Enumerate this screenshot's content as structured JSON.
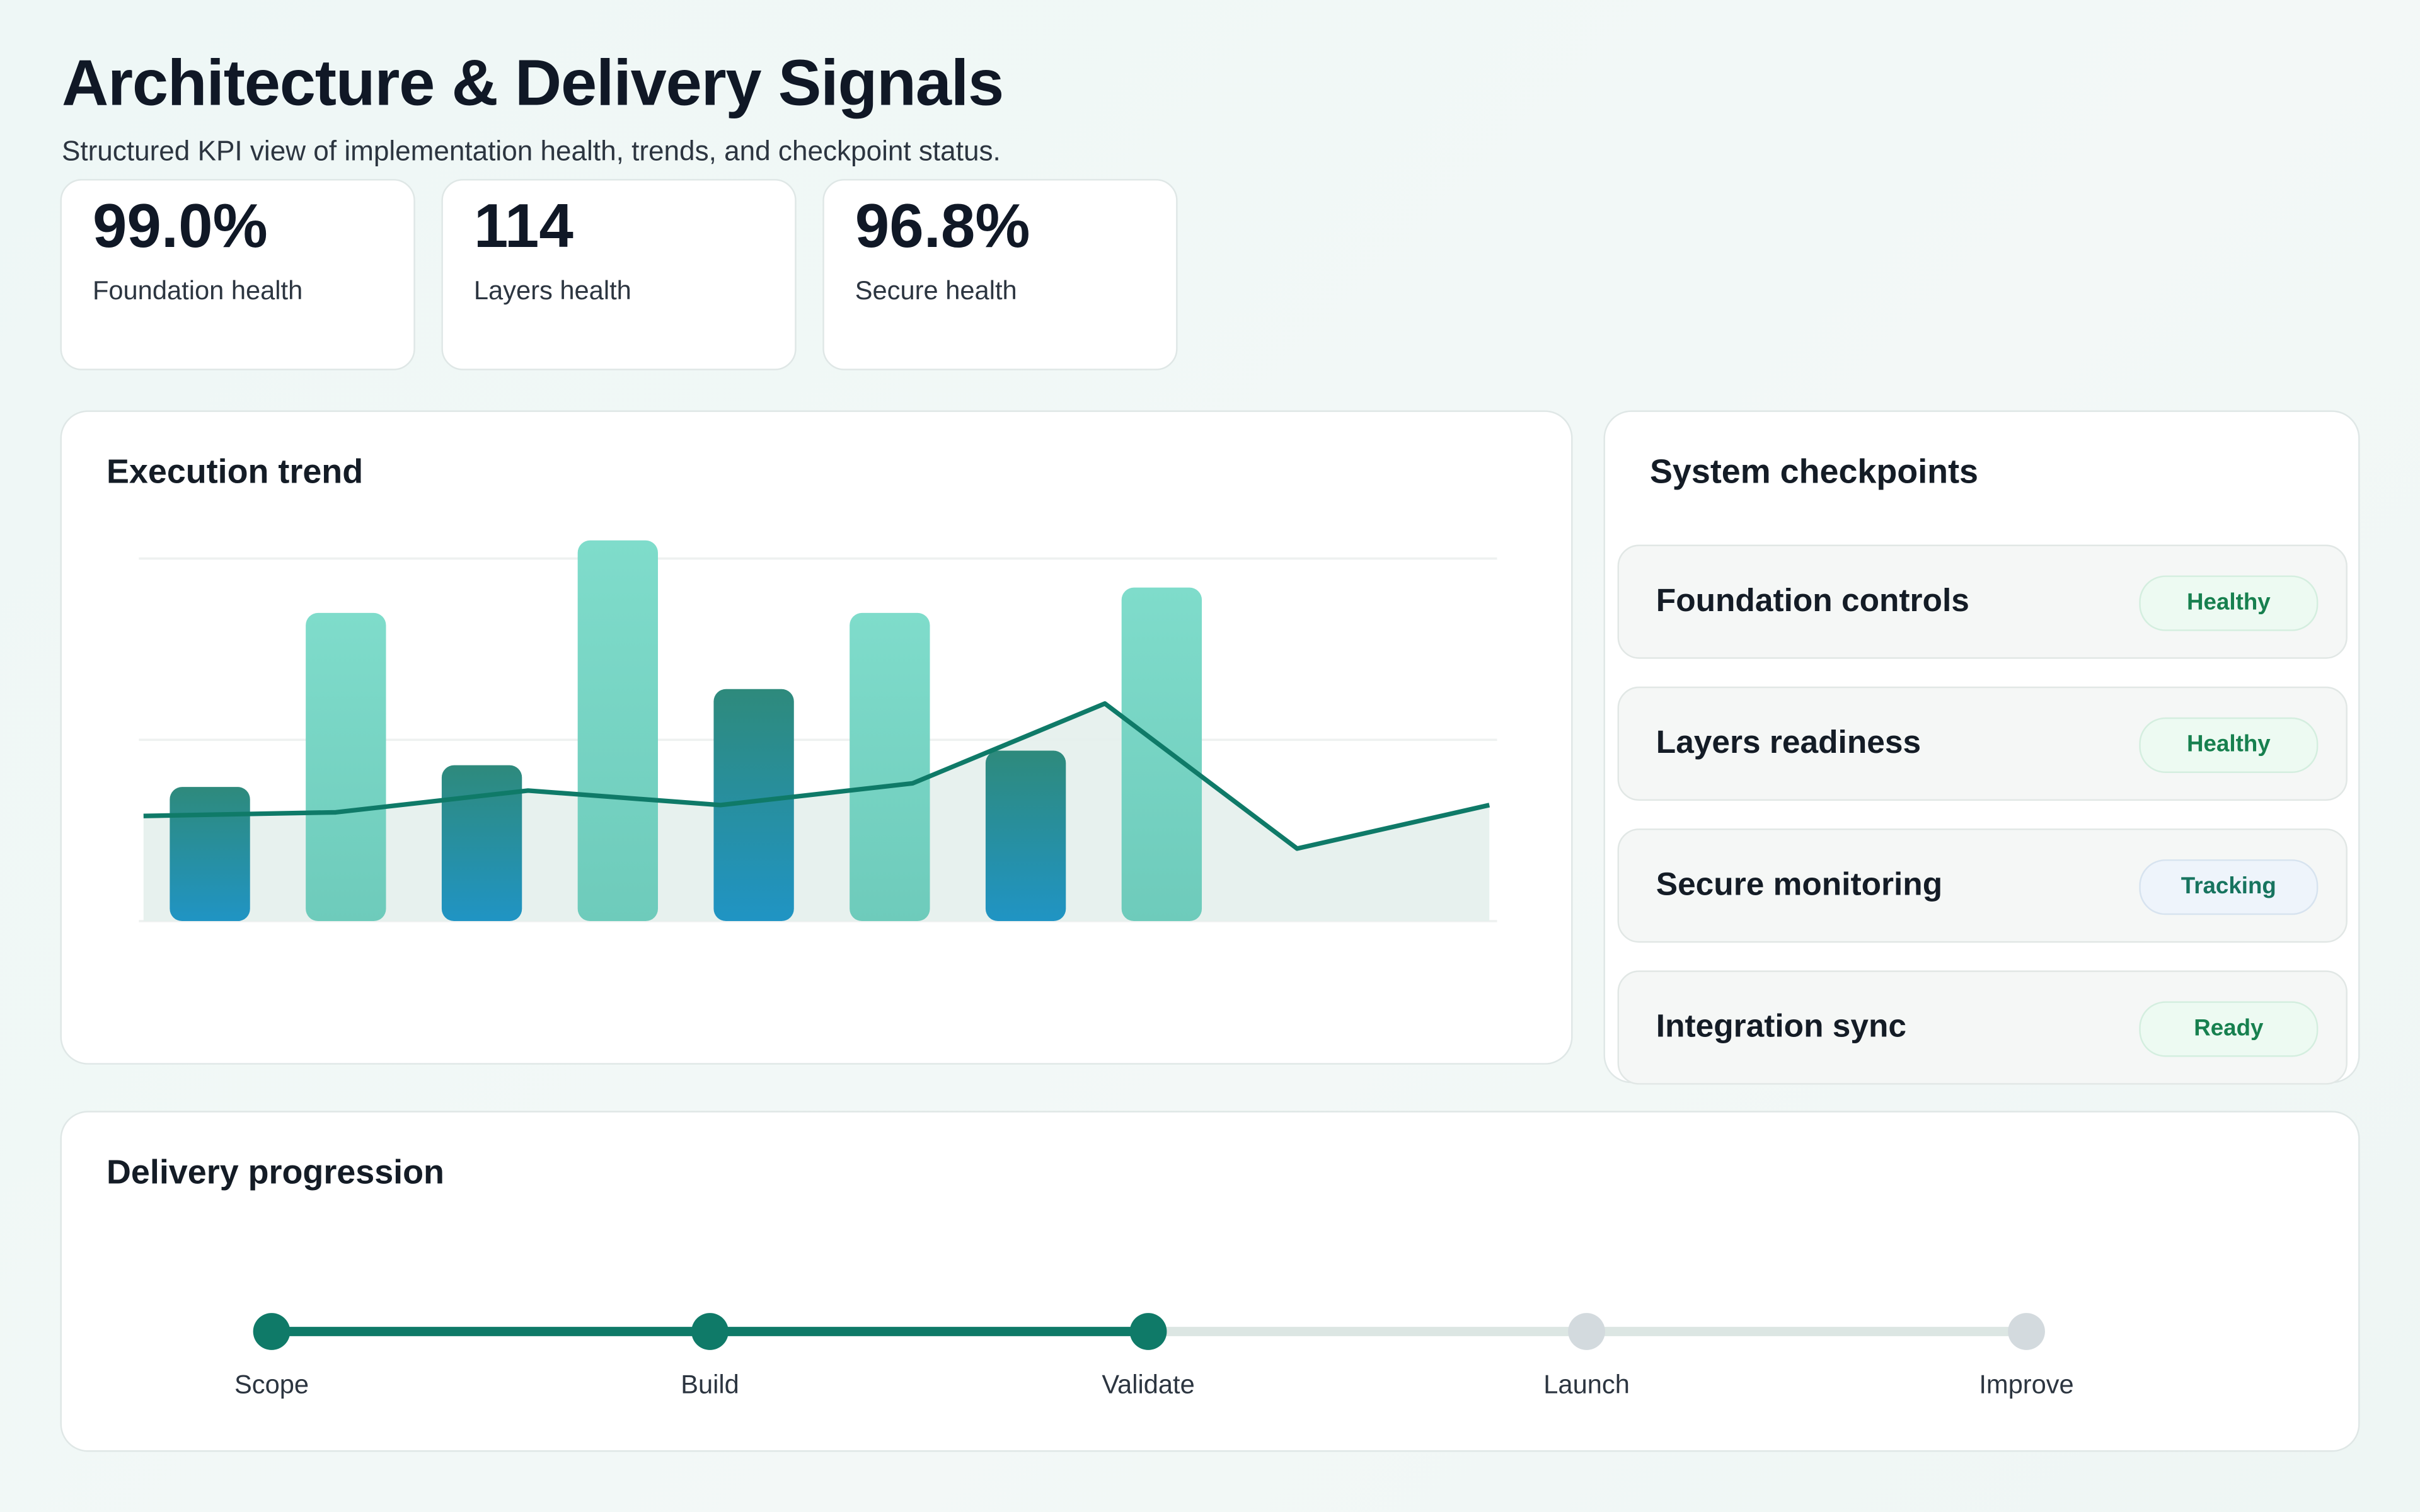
{
  "header": {
    "title": "Architecture & Delivery Signals",
    "subtitle": "Structured KPI view of implementation health, trends, and checkpoint status."
  },
  "kpis": [
    {
      "value": "99.0%",
      "label": "Foundation health"
    },
    {
      "value": "114",
      "label": "Layers health"
    },
    {
      "value": "96.8%",
      "label": "Secure health"
    }
  ],
  "trend": {
    "title": "Execution trend"
  },
  "chart_data": {
    "type": "bar",
    "title": "Execution trend",
    "ylim": [
      0,
      110
    ],
    "grid": true,
    "bars": [
      37,
      85,
      43,
      105,
      64,
      85,
      47,
      92
    ],
    "bar_colors": [
      "dark",
      "light",
      "dark",
      "light",
      "dark",
      "light",
      "dark",
      "light"
    ],
    "line": [
      29,
      30,
      36,
      32,
      38,
      60,
      20,
      32
    ],
    "colors": {
      "bar_dark_top": "#2e8a7c",
      "bar_dark_bottom": "#2094c4",
      "bar_light_top": "#7fdccb",
      "bar_light_bottom": "#6ecbbb",
      "line": "#0f7a68",
      "area": "#e4efec"
    }
  },
  "checkpoints": {
    "title": "System checkpoints",
    "items": [
      {
        "name": "Foundation controls",
        "status": "Healthy",
        "kind": "ok"
      },
      {
        "name": "Layers readiness",
        "status": "Healthy",
        "kind": "ok"
      },
      {
        "name": "Secure monitoring",
        "status": "Tracking",
        "kind": "track"
      },
      {
        "name": "Integration sync",
        "status": "Ready",
        "kind": "ok"
      }
    ]
  },
  "progression": {
    "title": "Delivery progression",
    "steps": [
      "Scope",
      "Build",
      "Validate",
      "Launch",
      "Improve"
    ],
    "completed": 3,
    "colors": {
      "done": "#0f7a68",
      "pending": "#d3dade"
    }
  }
}
